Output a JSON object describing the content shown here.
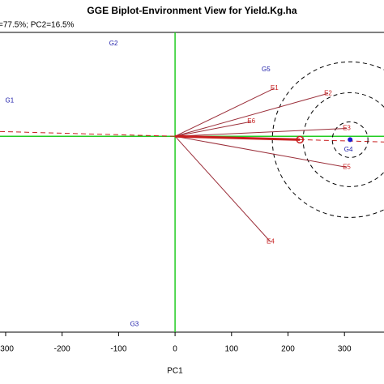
{
  "chart_data": {
    "type": "biplot",
    "title": "GGE Biplot-Environment View for Yield.Kg.ha",
    "subtitle": "=77.5%; PC2=16.5%",
    "x_label": "PC1",
    "xlim": [
      -310,
      370
    ],
    "ylim": [
      -347,
      184
    ],
    "xticks": [
      -300,
      -200,
      -100,
      0,
      100,
      200,
      300
    ],
    "axis_color": "#22cc22",
    "genotypes": {
      "labels": [
        "G1",
        "G2",
        "G3",
        "G4",
        "G5"
      ],
      "x": [
        -293,
        -109,
        -72,
        307,
        161
      ],
      "y": [
        63,
        164,
        -333,
        -24,
        118
      ],
      "color": "#1a1aa8"
    },
    "environments": {
      "labels": [
        "E1",
        "E2",
        "E3",
        "E4",
        "E5",
        "E6"
      ],
      "x": [
        176,
        271,
        304,
        169,
        304,
        135
      ],
      "y": [
        85,
        76,
        14,
        -187,
        -55,
        26
      ],
      "color": "#c81e1e",
      "vector_color": "#9b2f3a"
    },
    "average_environment": {
      "x": 221,
      "y": -6
    },
    "ideal": {
      "x": 310,
      "y": -6,
      "color": "#1a1ad0"
    }
  }
}
